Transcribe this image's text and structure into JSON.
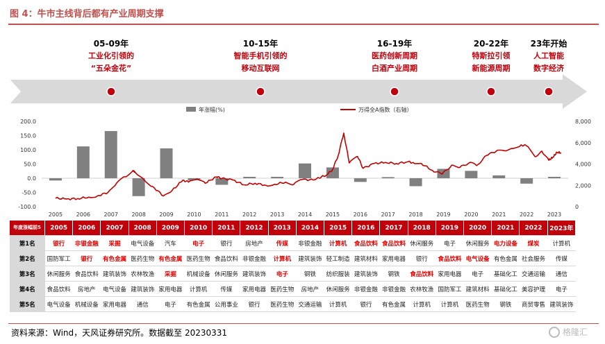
{
  "title": "图 4：牛市主线背后都有产业周期支撑",
  "eras": [
    {
      "year": "05-09年",
      "desc1": "工业化引领的",
      "desc2": "“五朵金花”"
    },
    {
      "year": "10-15年",
      "desc1": "智能手机引领的",
      "desc2": "移动互联网"
    },
    {
      "year": "16-19年",
      "desc1": "医药创新周期",
      "desc2": "白酒产业周期"
    },
    {
      "year": "20-22年",
      "desc1": "特斯拉引领",
      "desc2": "新能源周期"
    },
    {
      "year": "23年开始",
      "desc1": "人工智能",
      "desc2": "数字经济"
    }
  ],
  "colors": {
    "accent": "#c0000b",
    "bar": "#808080",
    "line": "#c00000",
    "header_bg": "#c0000b",
    "highlight": "#e00000"
  },
  "chart_data": {
    "type": "bar",
    "legend": [
      {
        "name": "年涨幅(%)",
        "type": "bar"
      },
      {
        "name": "万得全A指数（右轴）",
        "type": "line"
      }
    ],
    "legend_position": "top-center",
    "categories": [
      "2005",
      "2006",
      "2007",
      "2008",
      "2009",
      "2010",
      "2011",
      "2012",
      "2013",
      "2014",
      "2015",
      "2016",
      "2017",
      "2018",
      "2019",
      "2020",
      "2021",
      "2022",
      "2023"
    ],
    "series": [
      {
        "name": "年涨幅(%)",
        "axis": "left",
        "type": "bar",
        "values": [
          -8,
          112,
          166,
          -63,
          105,
          -7,
          -23,
          5,
          5,
          52,
          38,
          -13,
          4,
          -28,
          33,
          26,
          10,
          -19,
          5
        ]
      }
    ],
    "line_series": {
      "name": "万得全A指数（右轴）",
      "axis": "right",
      "type": "line",
      "points": [
        [
          2005.0,
          800
        ],
        [
          2005.4,
          720
        ],
        [
          2005.8,
          760
        ],
        [
          2006.2,
          900
        ],
        [
          2006.5,
          1000
        ],
        [
          2006.9,
          1350
        ],
        [
          2007.2,
          2200
        ],
        [
          2007.5,
          2800
        ],
        [
          2007.8,
          3400
        ],
        [
          2007.9,
          3150
        ],
        [
          2008.2,
          2500
        ],
        [
          2008.5,
          1900
        ],
        [
          2008.9,
          1000
        ],
        [
          2009.2,
          1500
        ],
        [
          2009.6,
          2500
        ],
        [
          2009.8,
          2300
        ],
        [
          2010.1,
          2600
        ],
        [
          2010.4,
          2200
        ],
        [
          2010.8,
          2800
        ],
        [
          2011.0,
          2650
        ],
        [
          2011.4,
          2500
        ],
        [
          2011.8,
          2050
        ],
        [
          2012.2,
          2200
        ],
        [
          2012.6,
          2000
        ],
        [
          2012.9,
          2100
        ],
        [
          2013.3,
          2300
        ],
        [
          2013.6,
          2100
        ],
        [
          2013.9,
          2550
        ],
        [
          2014.3,
          2500
        ],
        [
          2014.8,
          3000
        ],
        [
          2015.0,
          3500
        ],
        [
          2015.2,
          4800
        ],
        [
          2015.4,
          6900
        ],
        [
          2015.6,
          4100
        ],
        [
          2015.9,
          4700
        ],
        [
          2016.1,
          3600
        ],
        [
          2016.5,
          4050
        ],
        [
          2016.9,
          4150
        ],
        [
          2017.3,
          4050
        ],
        [
          2017.7,
          4200
        ],
        [
          2017.9,
          4150
        ],
        [
          2018.2,
          4050
        ],
        [
          2018.6,
          3400
        ],
        [
          2018.95,
          3050
        ],
        [
          2019.3,
          3900
        ],
        [
          2019.6,
          3700
        ],
        [
          2019.95,
          4150
        ],
        [
          2020.2,
          3850
        ],
        [
          2020.55,
          4800
        ],
        [
          2020.9,
          5200
        ],
        [
          2021.2,
          5250
        ],
        [
          2021.5,
          5450
        ],
        [
          2021.8,
          5800
        ],
        [
          2022.0,
          5700
        ],
        [
          2022.3,
          4700
        ],
        [
          2022.55,
          5200
        ],
        [
          2022.8,
          4350
        ],
        [
          2022.95,
          4650
        ],
        [
          2023.1,
          5100
        ],
        [
          2023.25,
          5050
        ]
      ]
    },
    "y_left": {
      "min": -100,
      "max": 200,
      "ticks": [
        "200.0",
        "150.0",
        "100.0",
        "50.0",
        "0.0",
        "-50.0",
        "-100.0"
      ]
    },
    "y_right": {
      "min": 0,
      "max": 8000,
      "ticks": [
        "8,000",
        "6,000",
        "4,000",
        "2,000",
        "0"
      ]
    }
  },
  "table": {
    "corner_label": "年度涨幅前5",
    "years": [
      "2005",
      "2006",
      "2007",
      "2008",
      "2009",
      "2010",
      "2011",
      "2012",
      "2013",
      "2014",
      "2015",
      "2016",
      "2017",
      "2018",
      "2019",
      "2020",
      "2021",
      "2022",
      "2023年"
    ],
    "rows": [
      {
        "label": "第1名",
        "cells": [
          "银行",
          "非银金融",
          "采掘",
          "电气设备",
          "汽车",
          "电子",
          "银行",
          "房地产",
          "传媒",
          "非银金融",
          "计算机",
          "食品饮料",
          "食品饮料",
          "休闲服务",
          "电子",
          "休闲服务",
          "电力设备",
          "煤炭",
          "计算机"
        ],
        "highlight": [
          true,
          true,
          true,
          false,
          false,
          true,
          false,
          false,
          true,
          false,
          true,
          true,
          true,
          false,
          false,
          false,
          true,
          true,
          false
        ]
      },
      {
        "label": "第2名",
        "cells": [
          "国防军工",
          "银行",
          "有色金属",
          "医药生物",
          "有色金属",
          "医药生物",
          "食品饮料",
          "非银金融",
          "计算机",
          "建筑装饰",
          "轻工制造",
          "建筑材料",
          "家用电器",
          "银行",
          "食品饮料",
          "电气设备",
          "有色金属",
          "社会服务",
          "传媒"
        ],
        "highlight": [
          false,
          true,
          true,
          false,
          true,
          false,
          false,
          false,
          true,
          false,
          false,
          false,
          false,
          false,
          true,
          true,
          false,
          false,
          false
        ]
      },
      {
        "label": "第3名",
        "cells": [
          "休闲服务",
          "食品饮料",
          "建筑装饰",
          "农林牧渔",
          "采掘",
          "机械设备",
          "休闲服务",
          "建筑装饰",
          "电子",
          "钢铁",
          "纺织服装",
          "建筑装饰",
          "钢铁",
          "食品饮料",
          "家用电器",
          "电子",
          "基础化工",
          "交通运输",
          "通信"
        ],
        "highlight": [
          false,
          false,
          false,
          false,
          true,
          false,
          false,
          false,
          true,
          false,
          false,
          false,
          false,
          true,
          false,
          false,
          false,
          false,
          false
        ]
      },
      {
        "label": "第4名",
        "cells": [
          "食品饮料",
          "房地产",
          "电气设备",
          "建筑装饰",
          "家用电器",
          "计算机",
          "传媒",
          "家用电器",
          "医药生物",
          "房地产",
          "休闲服务",
          "非银金融",
          "非银金融",
          "农林牧渔",
          "国防军工",
          "建筑材料",
          "基础化工",
          "美容护理",
          "电子"
        ],
        "highlight": [
          false,
          false,
          false,
          false,
          false,
          false,
          false,
          false,
          false,
          false,
          false,
          false,
          false,
          false,
          false,
          false,
          false,
          false,
          false
        ]
      },
      {
        "label": "第5名",
        "cells": [
          "电气设备",
          "机械设备",
          "家用电器",
          "通信",
          "电子",
          "有色金属",
          "公用事业",
          "银行",
          "医药生物",
          "交通运输",
          "计算机",
          "银行",
          "有色金属",
          "计算机",
          "计算机",
          "医药生物",
          "钢铁",
          "商贸零售",
          "建筑装饰"
        ],
        "highlight": [
          false,
          false,
          false,
          false,
          false,
          false,
          false,
          false,
          false,
          false,
          false,
          false,
          false,
          false,
          false,
          false,
          false,
          false,
          false
        ]
      }
    ]
  },
  "source": "资料来源：Wind，天风证券研究所。数据截至 20230331",
  "watermark": "格隆汇"
}
